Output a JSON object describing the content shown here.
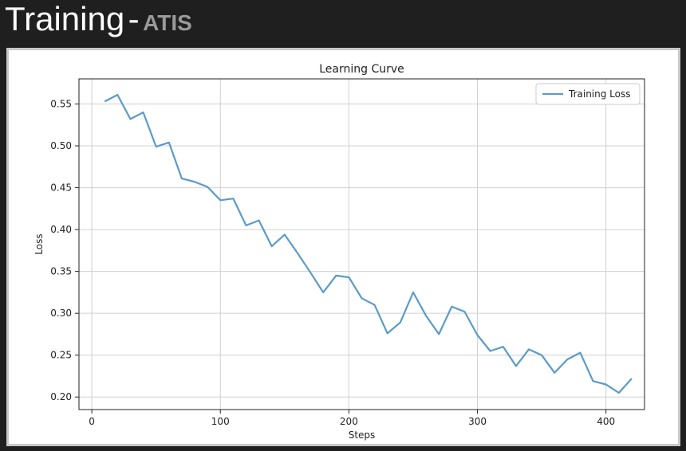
{
  "header": {
    "title": "Training",
    "separator": "-",
    "subtitle": "ATIS"
  },
  "colors": {
    "background": "#1f1f1f",
    "series_line": "#5b9bc8",
    "grid": "#d0d0d0"
  },
  "chart_data": {
    "type": "line",
    "title": "Learning Curve",
    "xlabel": "Steps",
    "ylabel": "Loss",
    "xlim": [
      -10,
      430
    ],
    "ylim": [
      0.185,
      0.58
    ],
    "xticks": [
      0,
      100,
      200,
      300,
      400
    ],
    "yticks": [
      0.2,
      0.25,
      0.3,
      0.35,
      0.4,
      0.45,
      0.5,
      0.55
    ],
    "grid": true,
    "legend": "top-right",
    "series": [
      {
        "name": "Training Loss",
        "color": "#5b9bc8",
        "x": [
          10,
          20,
          30,
          40,
          50,
          60,
          70,
          80,
          90,
          100,
          110,
          120,
          130,
          140,
          150,
          160,
          170,
          180,
          190,
          200,
          210,
          220,
          230,
          240,
          250,
          260,
          270,
          280,
          290,
          300,
          310,
          320,
          330,
          340,
          350,
          360,
          370,
          380,
          390,
          400,
          410,
          420
        ],
        "y": [
          0.553,
          0.561,
          0.532,
          0.54,
          0.499,
          0.504,
          0.461,
          0.457,
          0.451,
          0.435,
          0.437,
          0.405,
          0.411,
          0.38,
          0.394,
          0.372,
          0.349,
          0.325,
          0.345,
          0.343,
          0.318,
          0.31,
          0.276,
          0.289,
          0.325,
          0.297,
          0.275,
          0.308,
          0.302,
          0.274,
          0.255,
          0.26,
          0.237,
          0.257,
          0.25,
          0.229,
          0.245,
          0.253,
          0.219,
          0.215,
          0.205,
          0.222
        ]
      }
    ]
  }
}
